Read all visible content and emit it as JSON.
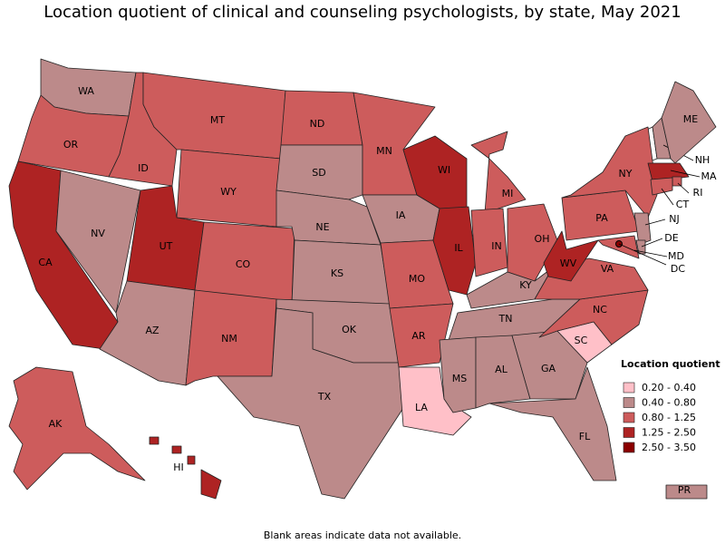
{
  "title": "Location quotient of clinical and counseling psychologists, by state, May 2021",
  "legend": {
    "title": "Location quotient",
    "entries": [
      {
        "label": "0.20 - 0.40",
        "color": "#ffc0c8"
      },
      {
        "label": "0.40 - 0.80",
        "color": "#bc8a8a"
      },
      {
        "label": "0.80 - 1.25",
        "color": "#cd5c5c"
      },
      {
        "label": "1.25 - 2.50",
        "color": "#ae2323"
      },
      {
        "label": "2.50 - 3.50",
        "color": "#8b0000"
      }
    ]
  },
  "states": [
    {
      "abbr": "WA",
      "color": "#bc8a8a"
    },
    {
      "abbr": "OR",
      "color": "#cd5c5c"
    },
    {
      "abbr": "CA",
      "color": "#ae2323"
    },
    {
      "abbr": "NV",
      "color": "#bc8a8a"
    },
    {
      "abbr": "ID",
      "color": "#cd5c5c"
    },
    {
      "abbr": "MT",
      "color": "#cd5c5c"
    },
    {
      "abbr": "WY",
      "color": "#cd5c5c"
    },
    {
      "abbr": "UT",
      "color": "#ae2323"
    },
    {
      "abbr": "AZ",
      "color": "#bc8a8a"
    },
    {
      "abbr": "CO",
      "color": "#cd5c5c"
    },
    {
      "abbr": "NM",
      "color": "#cd5c5c"
    },
    {
      "abbr": "ND",
      "color": "#cd5c5c"
    },
    {
      "abbr": "SD",
      "color": "#bc8a8a"
    },
    {
      "abbr": "NE",
      "color": "#bc8a8a"
    },
    {
      "abbr": "KS",
      "color": "#bc8a8a"
    },
    {
      "abbr": "OK",
      "color": "#bc8a8a"
    },
    {
      "abbr": "TX",
      "color": "#bc8a8a"
    },
    {
      "abbr": "MN",
      "color": "#cd5c5c"
    },
    {
      "abbr": "IA",
      "color": "#bc8a8a"
    },
    {
      "abbr": "MO",
      "color": "#cd5c5c"
    },
    {
      "abbr": "AR",
      "color": "#cd5c5c"
    },
    {
      "abbr": "LA",
      "color": "#ffc0c8"
    },
    {
      "abbr": "WI",
      "color": "#ae2323"
    },
    {
      "abbr": "IL",
      "color": "#ae2323"
    },
    {
      "abbr": "MI",
      "color": "#cd5c5c"
    },
    {
      "abbr": "IN",
      "color": "#cd5c5c"
    },
    {
      "abbr": "OH",
      "color": "#cd5c5c"
    },
    {
      "abbr": "KY",
      "color": "#bc8a8a"
    },
    {
      "abbr": "TN",
      "color": "#bc8a8a"
    },
    {
      "abbr": "MS",
      "color": "#bc8a8a"
    },
    {
      "abbr": "AL",
      "color": "#bc8a8a"
    },
    {
      "abbr": "GA",
      "color": "#bc8a8a"
    },
    {
      "abbr": "FL",
      "color": "#bc8a8a"
    },
    {
      "abbr": "SC",
      "color": "#ffc0c8"
    },
    {
      "abbr": "NC",
      "color": "#cd5c5c"
    },
    {
      "abbr": "VA",
      "color": "#cd5c5c"
    },
    {
      "abbr": "WV",
      "color": "#ae2323"
    },
    {
      "abbr": "PA",
      "color": "#cd5c5c"
    },
    {
      "abbr": "NY",
      "color": "#cd5c5c"
    },
    {
      "abbr": "NH",
      "color": "#bc8a8a"
    },
    {
      "abbr": "ME",
      "color": "#bc8a8a"
    },
    {
      "abbr": "MA",
      "color": "#ae2323"
    },
    {
      "abbr": "RI",
      "color": "#cd5c5c"
    },
    {
      "abbr": "CT",
      "color": "#cd5c5c"
    },
    {
      "abbr": "NJ",
      "color": "#bc8a8a"
    },
    {
      "abbr": "DE",
      "color": "#bc8a8a"
    },
    {
      "abbr": "MD",
      "color": "#cd5c5c"
    },
    {
      "abbr": "DC",
      "color": "#8b0000"
    },
    {
      "abbr": "AK",
      "color": "#cd5c5c"
    },
    {
      "abbr": "HI",
      "color": "#ae2323"
    },
    {
      "abbr": "PR",
      "color": "#bc8a8a"
    }
  ],
  "footnote": "Blank areas indicate data not available."
}
